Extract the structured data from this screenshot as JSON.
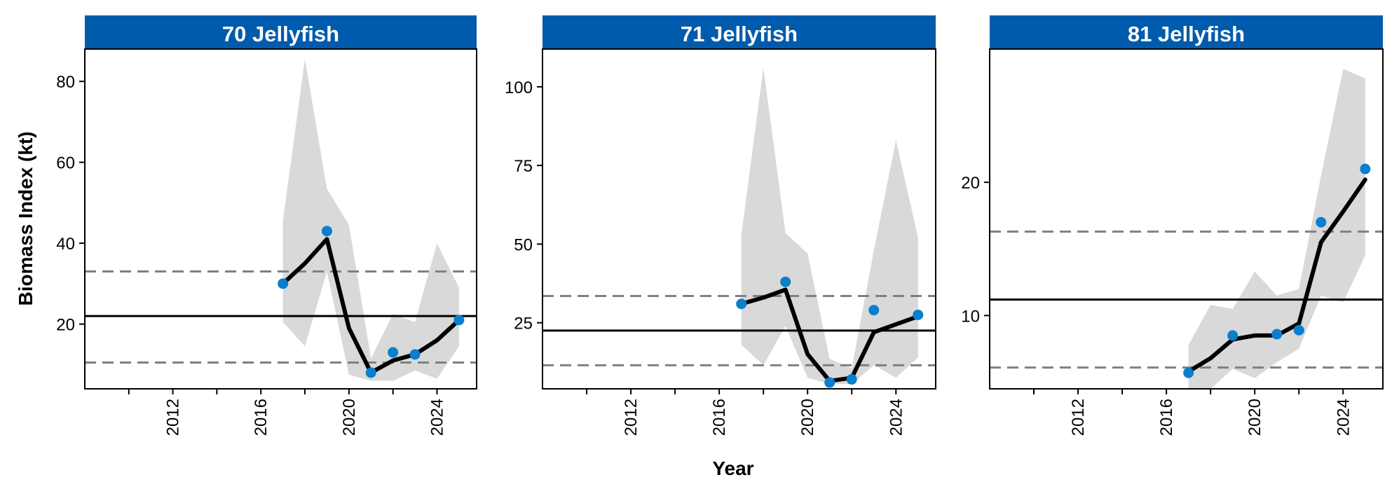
{
  "figure": {
    "ylabel": "Biomass Index (kt)",
    "xlabel": "Year"
  },
  "colors": {
    "strip": "#005BAC",
    "strip_text": "#FFFFFF",
    "point": "#0A7FCC",
    "line": "#000000",
    "ribbon": "#D9D9D9",
    "reference_dashed": "#808080",
    "reference_solid": "#000000"
  },
  "chart_data": [
    {
      "type": "line",
      "title": "70 Jellyfish",
      "xlim": [
        2008,
        2025.8
      ],
      "ylim": [
        4,
        88
      ],
      "x_ticks": [
        2010,
        2012,
        2014,
        2016,
        2018,
        2020,
        2022,
        2024
      ],
      "x_tick_labels": [
        "2012",
        "2016",
        "2020",
        "2024"
      ],
      "y_ticks": [
        20,
        40,
        60,
        80
      ],
      "series": [
        {
          "role": "ribbon",
          "x": [
            2017,
            2018,
            2019,
            2020,
            2021,
            2022,
            2023,
            2024,
            2025
          ],
          "upper": [
            45.5,
            85.5,
            53.5,
            44.5,
            11.5,
            22.5,
            20.5,
            40,
            29
          ],
          "lower": [
            20.5,
            14.5,
            33,
            7.5,
            6,
            6,
            8.5,
            6.5,
            14.5
          ]
        },
        {
          "role": "fit",
          "x": [
            2017,
            2018,
            2019,
            2020,
            2021,
            2022,
            2023,
            2024,
            2025
          ],
          "y": [
            30,
            35,
            41,
            19,
            8,
            11,
            12.5,
            16,
            21
          ]
        },
        {
          "role": "observed",
          "x": [
            2017,
            2019,
            2021,
            2022,
            2023,
            2025
          ],
          "y": [
            30,
            43,
            8,
            13,
            12.5,
            21
          ]
        }
      ],
      "hlines": [
        {
          "style": "solid",
          "y": 22
        },
        {
          "style": "dashed",
          "y": 33
        },
        {
          "style": "dashed",
          "y": 10.5
        }
      ]
    },
    {
      "type": "line",
      "title": "71 Jellyfish",
      "xlim": [
        2008,
        2025.8
      ],
      "ylim": [
        4,
        112
      ],
      "x_ticks": [
        2010,
        2012,
        2014,
        2016,
        2018,
        2020,
        2022,
        2024
      ],
      "x_tick_labels": [
        "2012",
        "2016",
        "2020",
        "2024"
      ],
      "y_ticks": [
        25,
        50,
        75,
        100
      ],
      "series": [
        {
          "role": "ribbon",
          "x": [
            2017,
            2018,
            2019,
            2020,
            2021,
            2022,
            2023,
            2024,
            2025
          ],
          "upper": [
            53,
            106,
            53.5,
            47,
            13.5,
            10.5,
            48,
            83,
            52
          ],
          "lower": [
            18,
            11.5,
            24,
            7.5,
            5.5,
            5.5,
            11.5,
            7.5,
            14
          ]
        },
        {
          "role": "fit",
          "x": [
            2017,
            2018,
            2019,
            2020,
            2021,
            2022,
            2023,
            2024,
            2025
          ],
          "y": [
            31,
            33,
            35.5,
            15,
            6.5,
            7.5,
            22,
            24.5,
            27
          ]
        },
        {
          "role": "observed",
          "x": [
            2017,
            2019,
            2021,
            2022,
            2023,
            2025
          ],
          "y": [
            31,
            38,
            6,
            7,
            29,
            27.5
          ]
        }
      ],
      "hlines": [
        {
          "style": "solid",
          "y": 22.5
        },
        {
          "style": "dashed",
          "y": 33.5
        },
        {
          "style": "dashed",
          "y": 11.5
        }
      ]
    },
    {
      "type": "line",
      "title": "81 Jellyfish",
      "xlim": [
        2008,
        2025.8
      ],
      "ylim": [
        4.5,
        30
      ],
      "x_ticks": [
        2010,
        2012,
        2014,
        2016,
        2018,
        2020,
        2022,
        2024
      ],
      "x_tick_labels": [
        "2012",
        "2016",
        "2020",
        "2024"
      ],
      "y_ticks": [
        10,
        20
      ],
      "series": [
        {
          "role": "ribbon",
          "x": [
            2017,
            2018,
            2019,
            2020,
            2021,
            2022,
            2023,
            2024,
            2025
          ],
          "upper": [
            7.8,
            10.8,
            10.5,
            13.3,
            11.5,
            12,
            20.5,
            28.5,
            27.8
          ],
          "lower": [
            4.5,
            4.5,
            6,
            5.3,
            6.5,
            7.5,
            11.5,
            11,
            14.5
          ]
        },
        {
          "role": "fit",
          "x": [
            2017,
            2018,
            2019,
            2020,
            2021,
            2022,
            2023,
            2024,
            2025
          ],
          "y": [
            5.8,
            6.8,
            8.2,
            8.5,
            8.5,
            9.4,
            15.5,
            17.8,
            20.2
          ]
        },
        {
          "role": "observed",
          "x": [
            2017,
            2019,
            2021,
            2022,
            2023,
            2025
          ],
          "y": [
            5.7,
            8.5,
            8.6,
            8.9,
            17,
            21
          ]
        }
      ],
      "hlines": [
        {
          "style": "solid",
          "y": 11.2
        },
        {
          "style": "dashed",
          "y": 16.3
        },
        {
          "style": "dashed",
          "y": 6.1
        }
      ]
    }
  ]
}
